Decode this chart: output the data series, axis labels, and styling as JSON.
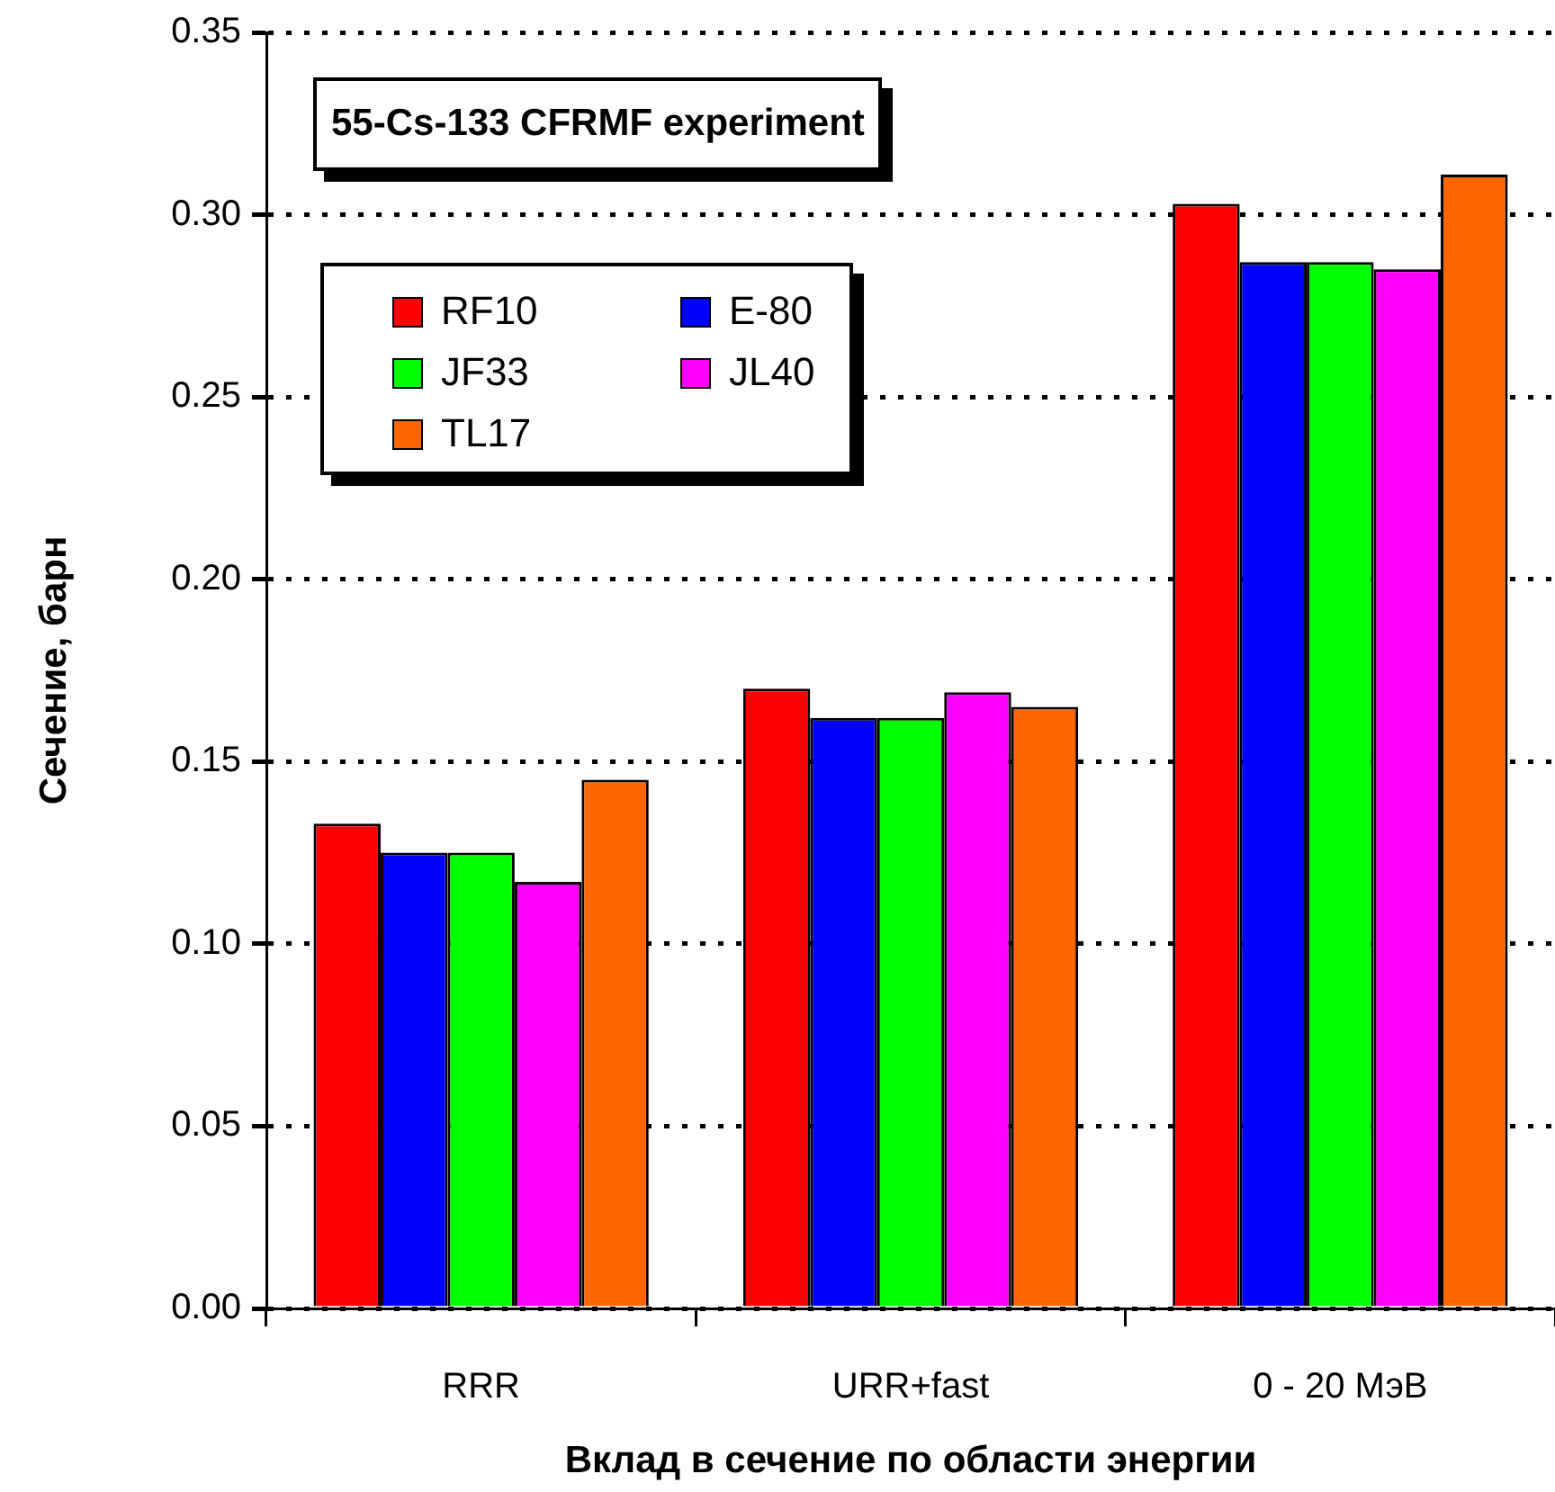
{
  "chart_data": {
    "type": "bar",
    "title": "55-Cs-133 CFRMF experiment",
    "xlabel": "Вклад в сечение по области энергии",
    "ylabel": "Сечение, барн",
    "categories": [
      "RRR",
      "URR+fast",
      "0 - 20 МэВ"
    ],
    "series": [
      {
        "name": "RF10",
        "color": "#ff0000",
        "values": [
          0.133,
          0.17,
          0.303
        ]
      },
      {
        "name": "E-80",
        "color": "#0000ff",
        "values": [
          0.125,
          0.162,
          0.287
        ]
      },
      {
        "name": "JF33",
        "color": "#00ff00",
        "values": [
          0.125,
          0.162,
          0.287
        ]
      },
      {
        "name": "JL40",
        "color": "#ff00ff",
        "values": [
          0.117,
          0.169,
          0.285
        ]
      },
      {
        "name": "TL17",
        "color": "#ff6600",
        "values": [
          0.145,
          0.165,
          0.311
        ]
      }
    ],
    "ylim": [
      0,
      0.35
    ],
    "yticks": [
      {
        "value": 0,
        "label": "0.00"
      },
      {
        "value": 0.05,
        "label": "0.05"
      },
      {
        "value": 0.1,
        "label": "0.10"
      },
      {
        "value": 0.15,
        "label": "0.15"
      },
      {
        "value": 0.2,
        "label": "0.20"
      },
      {
        "value": 0.25,
        "label": "0.25"
      },
      {
        "value": 0.3,
        "label": "0.30"
      },
      {
        "value": 0.35,
        "label": "0.35"
      }
    ],
    "grid": "y",
    "legend": "top left"
  }
}
